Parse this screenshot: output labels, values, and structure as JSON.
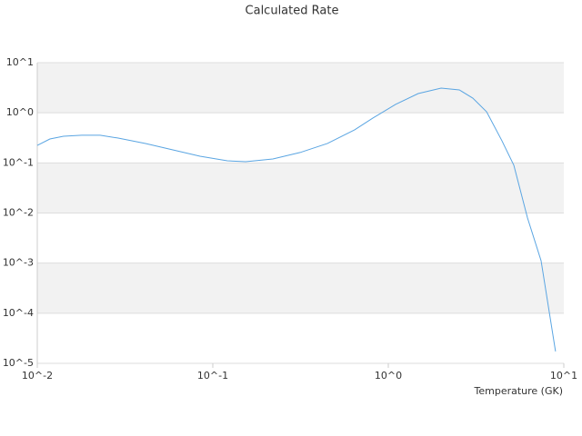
{
  "chart_data": {
    "type": "line",
    "title": "Calculated Rate",
    "x_label": "Temperature (GK)",
    "xscale": "log",
    "yscale": "log",
    "grid": true,
    "color": "#5aa5e2",
    "xlim": [
      0.01,
      10
    ],
    "ylim": [
      1e-05,
      10
    ],
    "xticks": [
      {
        "value": 0.01,
        "label": "10^-2"
      },
      {
        "value": 0.1,
        "label": "10^-1"
      },
      {
        "value": 1,
        "label": "10^0"
      },
      {
        "value": 10,
        "label": "10^1"
      }
    ],
    "yticks": [
      {
        "value": 10,
        "label": "10^1"
      },
      {
        "value": 1,
        "label": "10^0"
      },
      {
        "value": 0.1,
        "label": "10^-1"
      },
      {
        "value": 0.01,
        "label": "10^-2"
      },
      {
        "value": 0.001,
        "label": "10^-3"
      },
      {
        "value": 0.0001,
        "label": "10^-4"
      },
      {
        "value": 1e-05,
        "label": "10^-5"
      }
    ],
    "x": [
      0.01,
      0.0118,
      0.0141,
      0.0179,
      0.0228,
      0.0289,
      0.0414,
      0.0592,
      0.0846,
      0.121,
      0.154,
      0.22,
      0.314,
      0.45,
      0.643,
      0.817,
      1.1,
      1.48,
      2.0,
      2.54,
      3.03,
      3.63,
      4.44,
      5.19,
      6.21,
      7.42,
      8.97
    ],
    "values": [
      0.224,
      0.3,
      0.34,
      0.356,
      0.356,
      0.313,
      0.244,
      0.182,
      0.136,
      0.11,
      0.106,
      0.12,
      0.161,
      0.244,
      0.456,
      0.785,
      1.47,
      2.42,
      3.11,
      2.86,
      1.96,
      1.05,
      0.277,
      0.0898,
      0.00798,
      0.00112,
      1.73e-05
    ]
  }
}
